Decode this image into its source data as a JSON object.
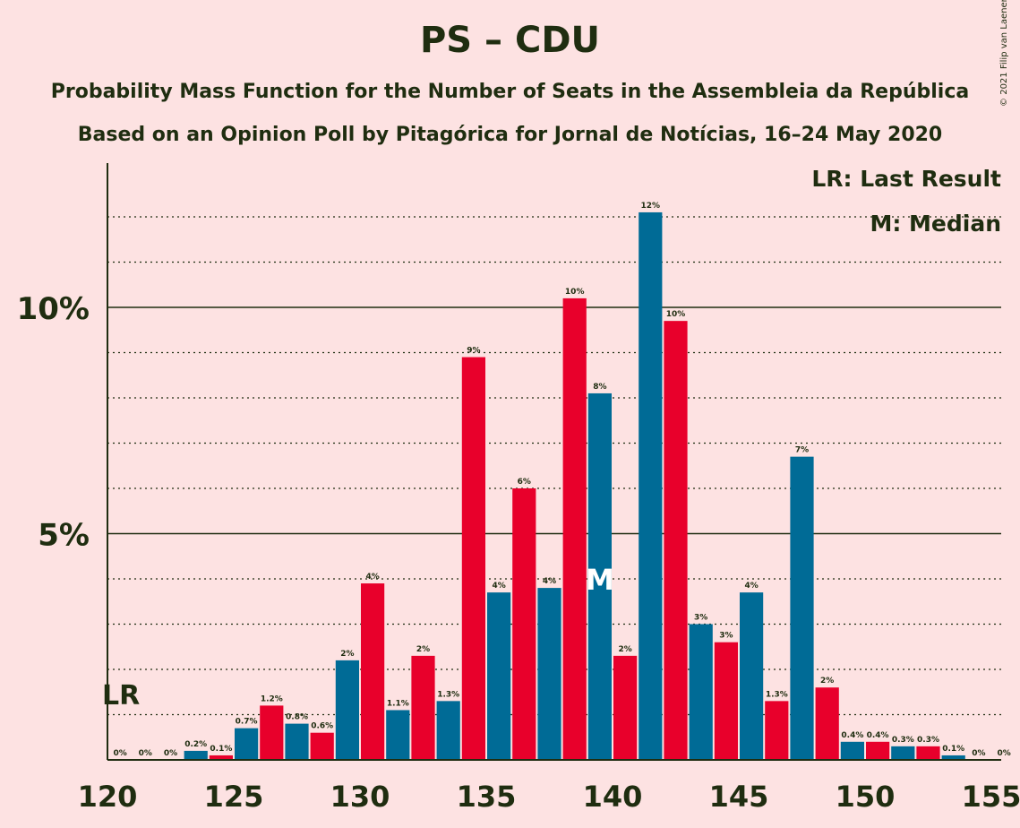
{
  "chart_data": {
    "type": "bar",
    "title": "PS – CDU",
    "subtitle1": "Probability Mass Function for the Number of Seats in the Assembleia da República",
    "subtitle2": "Based on an Opinion Poll by Pitagórica for Jornal de Notícias, 16–24 May 2020",
    "copyright": "© 2021 Filip van Laenen",
    "legend_lr": "LR: Last Result",
    "legend_median": "M: Median",
    "last_result_seat": 120,
    "last_result_label": "LR",
    "median_seat": 139,
    "median_label": "M",
    "x_ticks": [
      "120",
      "125",
      "130",
      "135",
      "140",
      "145",
      "150",
      "155"
    ],
    "y_ticks": [
      {
        "value": 5,
        "label": "5%"
      },
      {
        "value": 10,
        "label": "10%"
      }
    ],
    "ylim": [
      0,
      13
    ],
    "grid": true,
    "colors": {
      "ps": "#e8002b",
      "cdu": "#006b96",
      "background": "#fde2e2",
      "text": "#1f2d10"
    },
    "bars": [
      {
        "seat": 120,
        "value": 0,
        "label": "0%"
      },
      {
        "seat": 121,
        "value": 0,
        "label": "0%"
      },
      {
        "seat": 122,
        "value": 0,
        "label": "0%"
      },
      {
        "seat": 123,
        "value": 0.2,
        "label": "0.2%"
      },
      {
        "seat": 124,
        "value": 0.1,
        "label": "0.1%"
      },
      {
        "seat": 125,
        "value": 0.7,
        "label": "0.7%"
      },
      {
        "seat": 126,
        "value": 1.2,
        "label": "1.2%"
      },
      {
        "seat": 127,
        "value": 0.8,
        "label": "0.8%"
      },
      {
        "seat": 128,
        "value": 0.6,
        "label": "0.6%"
      },
      {
        "seat": 129,
        "value": 2.2,
        "label": "2%"
      },
      {
        "seat": 130,
        "value": 3.9,
        "label": "4%"
      },
      {
        "seat": 131,
        "value": 1.1,
        "label": "1.1%"
      },
      {
        "seat": 132,
        "value": 2.3,
        "label": "2%"
      },
      {
        "seat": 133,
        "value": 1.3,
        "label": "1.3%"
      },
      {
        "seat": 134,
        "value": 8.9,
        "label": "9%"
      },
      {
        "seat": 135,
        "value": 3.7,
        "label": "4%"
      },
      {
        "seat": 136,
        "value": 6.0,
        "label": "6%"
      },
      {
        "seat": 137,
        "value": 3.8,
        "label": "4%"
      },
      {
        "seat": 138,
        "value": 10.2,
        "label": "10%"
      },
      {
        "seat": 139,
        "value": 8.1,
        "label": "8%"
      },
      {
        "seat": 140,
        "value": 2.3,
        "label": "2%"
      },
      {
        "seat": 141,
        "value": 12.1,
        "label": "12%"
      },
      {
        "seat": 142,
        "value": 9.7,
        "label": "10%"
      },
      {
        "seat": 143,
        "value": 3.0,
        "label": "3%"
      },
      {
        "seat": 144,
        "value": 2.6,
        "label": "3%"
      },
      {
        "seat": 145,
        "value": 3.7,
        "label": "4%"
      },
      {
        "seat": 146,
        "value": 1.3,
        "label": "1.3%"
      },
      {
        "seat": 147,
        "value": 6.7,
        "label": "7%"
      },
      {
        "seat": 148,
        "value": 1.6,
        "label": "2%"
      },
      {
        "seat": 149,
        "value": 0.4,
        "label": "0.4%"
      },
      {
        "seat": 150,
        "value": 0.4,
        "label": "0.4%"
      },
      {
        "seat": 151,
        "value": 0.3,
        "label": "0.3%"
      },
      {
        "seat": 152,
        "value": 0.3,
        "label": "0.3%"
      },
      {
        "seat": 153,
        "value": 0.1,
        "label": "0.1%"
      },
      {
        "seat": 154,
        "value": 0,
        "label": "0%"
      },
      {
        "seat": 155,
        "value": 0,
        "label": "0%"
      }
    ]
  }
}
